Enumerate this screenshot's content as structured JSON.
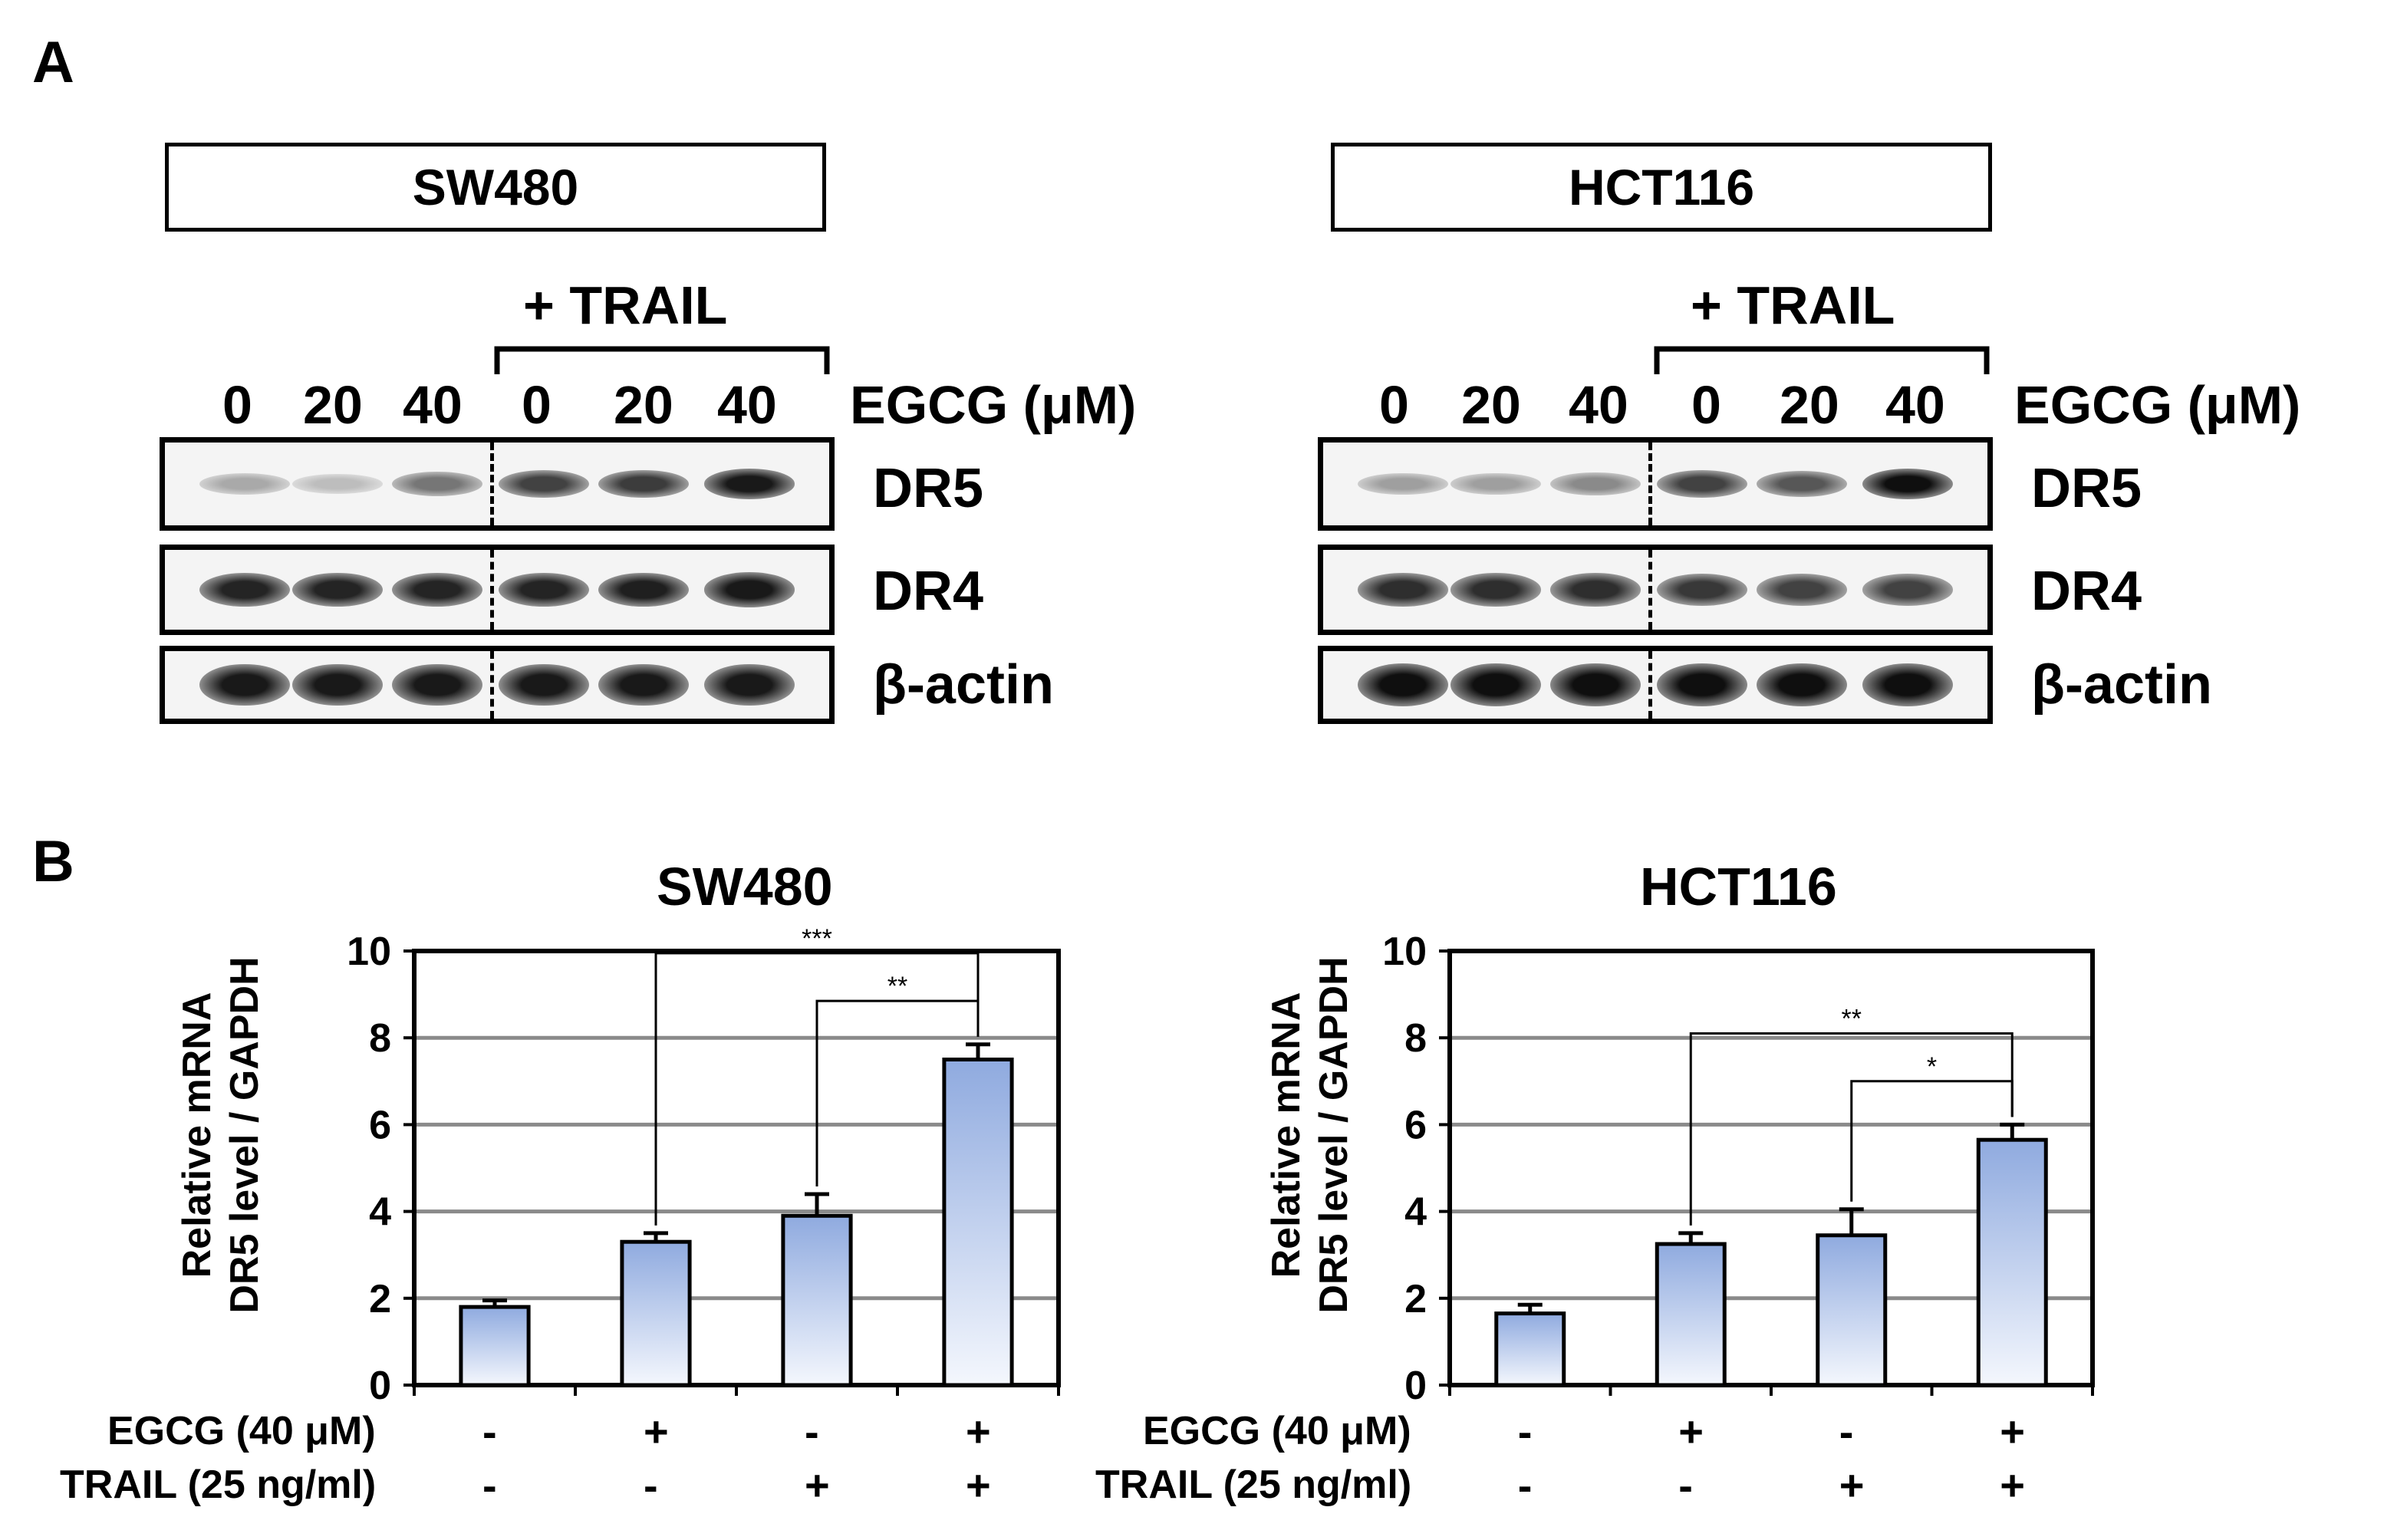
{
  "panel_a": {
    "label": "A",
    "cell_lines": [
      {
        "name": "SW480",
        "trail_label": "+ TRAIL",
        "doses": [
          "0",
          "20",
          "40",
          "0",
          "20",
          "40"
        ],
        "dose_label": "EGCG (μM)",
        "blots": [
          {
            "name": "DR5",
            "intensity": [
              0.25,
              0.15,
              0.5,
              0.75,
              0.78,
              0.95
            ]
          },
          {
            "name": "DR4",
            "intensity": [
              0.9,
              0.9,
              0.9,
              0.9,
              0.92,
              0.95
            ]
          },
          {
            "name": "β-actin",
            "intensity": [
              0.95,
              0.95,
              0.95,
              0.95,
              0.95,
              0.95
            ]
          }
        ]
      },
      {
        "name": "HCT116",
        "trail_label": "+ TRAIL",
        "doses": [
          "0",
          "20",
          "40",
          "0",
          "20",
          "40"
        ],
        "dose_label": "EGCG (μM)",
        "blots": [
          {
            "name": "DR5",
            "intensity": [
              0.3,
              0.3,
              0.4,
              0.75,
              0.65,
              1.0
            ]
          },
          {
            "name": "DR4",
            "intensity": [
              0.85,
              0.85,
              0.85,
              0.8,
              0.75,
              0.75
            ]
          },
          {
            "name": "β-actin",
            "intensity": [
              1.0,
              1.0,
              1.0,
              1.0,
              1.0,
              1.0
            ]
          }
        ]
      }
    ]
  },
  "panel_b": {
    "label": "B",
    "row_labels": [
      "EGCG (40 μM)",
      "TRAIL (25 ng/ml)"
    ],
    "egcg_signs": [
      "-",
      "+",
      "-",
      "+"
    ],
    "trail_signs": [
      "-",
      "-",
      "+",
      "+"
    ]
  },
  "chart_data": [
    {
      "type": "bar",
      "title": "SW480",
      "ylabel": "Relative mRNA DR5 level / GAPDH",
      "ylabel_lines": [
        "Relative mRNA",
        "DR5 level / GAPDH"
      ],
      "ylim": [
        0,
        10
      ],
      "yticks": [
        "0",
        "2",
        "4",
        "6",
        "8",
        "10"
      ],
      "values": [
        1.8,
        3.3,
        3.9,
        7.5
      ],
      "errors": [
        0.15,
        0.2,
        0.5,
        0.35
      ],
      "grid": true,
      "significance": [
        {
          "from": 1,
          "to": 3,
          "label": "***"
        },
        {
          "from": 2,
          "to": 3,
          "label": "**"
        }
      ]
    },
    {
      "type": "bar",
      "title": "HCT116",
      "ylabel": "Relative mRNA DR5 level / GAPDH",
      "ylabel_lines": [
        "Relative mRNA",
        "DR5 level / GAPDH"
      ],
      "ylim": [
        0,
        10
      ],
      "yticks": [
        "0",
        "2",
        "4",
        "6",
        "8",
        "10"
      ],
      "values": [
        1.65,
        3.25,
        3.45,
        5.65
      ],
      "errors": [
        0.2,
        0.25,
        0.6,
        0.35
      ],
      "grid": true,
      "significance": [
        {
          "from": 1,
          "to": 3,
          "label": "**"
        },
        {
          "from": 2,
          "to": 3,
          "label": "*"
        }
      ]
    }
  ]
}
